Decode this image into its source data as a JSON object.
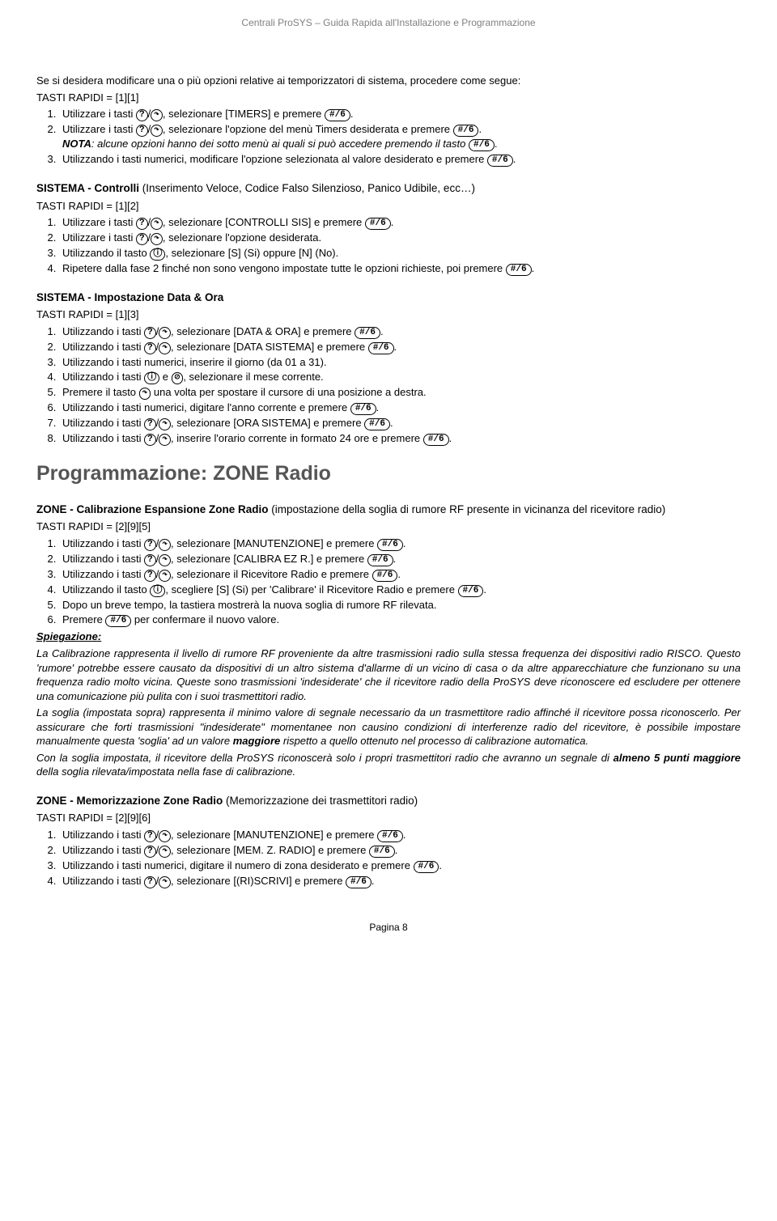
{
  "header": "Centrali ProSYS – Guida Rapida all'Installazione e Programmazione",
  "footer": "Pagina 8",
  "key_up": "?",
  "key_down": "↷",
  "key_hash": "#/6",
  "key_stat": "ⓘ",
  "key_byp": "⊘",
  "intro": {
    "l1": "Se si desidera modificare una o più opzioni relative ai temporizzatori di sistema, procedere come segue:",
    "l2": "TASTI RAPIDI = [1][1]",
    "i1a": "Utilizzare i tasti ",
    "i1b": ", selezionare [TIMERS] e premere ",
    "i2a": "Utilizzare i tasti ",
    "i2b": ", selezionare l'opzione del menù Timers desiderata e premere ",
    "notaA": "NOTA",
    "notaB": ": alcune opzioni hanno dei sotto menù ai quali si può accedere premendo il tasto ",
    "i3a": "Utilizzando i tasti numerici, modificare l'opzione selezionata al valore desiderato e premere "
  },
  "controlli": {
    "title": "SISTEMA - Controlli ",
    "sub": "(Inserimento Veloce, Codice Falso Silenzioso, Panico Udibile, ecc…)",
    "tr": "TASTI RAPIDI = [1][2]",
    "i1a": "Utilizzare i tasti ",
    "i1b": ", selezionare [CONTROLLI SIS] e premere ",
    "i2a": "Utilizzare i tasti ",
    "i2b": ", selezionare l'opzione desiderata.",
    "i3a": "Utilizzando il tasto ",
    "i3b": ", selezionare [S] (Si) oppure [N] (No).",
    "i4a": "Ripetere dalla fase 2 finché non sono vengono impostate tutte le opzioni richieste, poi premere "
  },
  "dataora": {
    "title": "SISTEMA - Impostazione Data & Ora",
    "tr": "TASTI RAPIDI = [1][3]",
    "i1a": "Utilizzando i tasti ",
    "i1b": ", selezionare [DATA & ORA] e premere ",
    "i2a": "Utilizzando i tasti ",
    "i2b": ", selezionare [DATA SISTEMA] e premere ",
    "i3": "Utilizzando i tasti numerici, inserire il giorno (da 01 a 31).",
    "i4a": "Utilizzando i tasti ",
    "i4b": " e ",
    "i4c": ", selezionare il mese corrente.",
    "i5a": "Premere il tasto ",
    "i5b": " una volta per spostare il cursore di una posizione a destra.",
    "i6a": "Utilizzando i tasti numerici, digitare l'anno corrente e premere ",
    "i7a": "Utilizzando i tasti ",
    "i7b": ", selezionare [ORA SISTEMA] e premere ",
    "i8a": "Utilizzando i tasti ",
    "i8b": ", inserire l'orario corrente in formato 24 ore e premere "
  },
  "bigtitle": "Programmazione: ZONE Radio",
  "calib": {
    "titleA": "ZONE - Calibrazione Espansione Zone Radio ",
    "titleB": "(impostazione della soglia di rumore RF presente in vicinanza del ricevitore radio)",
    "tr": "TASTI RAPIDI = [2][9][5]",
    "i1a": "Utilizzando i tasti ",
    "i1b": ", selezionare [MANUTENZIONE] e premere ",
    "i2a": "Utilizzando i tasti ",
    "i2b": ", selezionare [CALIBRA EZ R.] e premere ",
    "i3a": "Utilizzando i tasti ",
    "i3b": ", selezionare il Ricevitore Radio e premere ",
    "i4a": "Utilizzando il tasto ",
    "i4b": ", scegliere [S] (Si) per 'Calibrare' il Ricevitore Radio e premere ",
    "i5": "Dopo un breve tempo, la tastiera mostrerà la nuova soglia di rumore RF rilevata.",
    "i6a": "Premere ",
    "i6b": " per confermare il nuovo valore."
  },
  "spieg": {
    "head": "Spiegazione:",
    "p1": "La Calibrazione rappresenta il livello di rumore RF proveniente da altre trasmissioni radio sulla stessa frequenza dei dispositivi radio RISCO. Questo 'rumore' potrebbe essere causato da dispositivi di un altro sistema d'allarme di un vicino di casa o da altre apparecchiature che funzionano su una frequenza radio molto vicina. Queste sono trasmissioni 'indesiderate' che il ricevitore radio della ProSYS deve riconoscere ed escludere per ottenere una comunicazione più pulita con i suoi trasmettitori radio.",
    "p2a": "La soglia (impostata sopra) rappresenta il minimo valore di segnale necessario da un trasmettitore radio affinché il ricevitore possa riconoscerlo. Per assicurare che forti trasmissioni \"indesiderate\" momentanee non causino condizioni di interferenze radio del ricevitore, è possibile impostare manualmente questa 'soglia' ad un valore ",
    "p2b": "maggiore",
    "p2c": " rispetto a quello ottenuto nel processo di calibrazione automatica.",
    "p3a": "Con la soglia impostata, il ricevitore della ProSYS riconoscerà solo i propri trasmettitori radio che avranno un segnale di ",
    "p3b": "almeno 5 punti maggiore",
    "p3c": " della soglia rilevata/impostata nella fase di calibrazione."
  },
  "memo": {
    "titleA": "ZONE - Memorizzazione Zone Radio ",
    "titleB": "(Memorizzazione dei trasmettitori radio)",
    "tr": "TASTI RAPIDI = [2][9][6]",
    "i1a": "Utilizzando i tasti ",
    "i1b": ", selezionare [MANUTENZIONE] e premere ",
    "i2a": "Utilizzando i tasti ",
    "i2b": ", selezionare [MEM. Z. RADIO] e premere ",
    "i3a": "Utilizzando i tasti numerici, digitare il numero di zona desiderato e premere ",
    "i4a": "Utilizzando i tasti ",
    "i4b": ", selezionare [(RI)SCRIVI] e premere "
  }
}
